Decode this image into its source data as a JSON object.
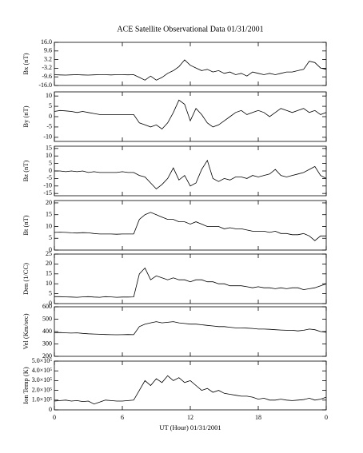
{
  "chart_data": [
    {
      "type": "line",
      "title": "ACE Satellite Observational Data   01/31/2001",
      "ylabel": "Bx (nT)",
      "color": "#000000",
      "x": [
        0,
        0.5,
        1,
        1.5,
        2,
        2.5,
        3,
        3.5,
        4,
        4.5,
        5,
        5.5,
        6,
        6.5,
        7,
        7.5,
        8,
        8.5,
        9,
        9.5,
        10,
        10.5,
        11,
        11.5,
        12,
        12.5,
        13,
        13.5,
        14,
        14.5,
        15,
        15.5,
        16,
        16.5,
        17,
        17.5,
        18,
        18.5,
        19,
        19.5,
        20,
        20.5,
        21,
        21.5,
        22,
        22.5,
        23,
        23.5,
        24
      ],
      "values": [
        -8,
        -8.2,
        -8.3,
        -8.1,
        -8,
        -8.2,
        -8.3,
        -8.1,
        -8,
        -8,
        -8.2,
        -8,
        -8,
        -8.1,
        -8,
        -10,
        -12,
        -9,
        -12,
        -10,
        -7,
        -5,
        -2,
        3,
        -1,
        -3,
        -5,
        -4,
        -6,
        -5,
        -7,
        -6,
        -8,
        -7,
        -9,
        -6,
        -7,
        -8,
        -7,
        -8,
        -7,
        -6,
        -6,
        -5,
        -4,
        2,
        1,
        -3,
        -4
      ],
      "xlim": [
        0,
        24
      ],
      "xticks": [
        0,
        6,
        12,
        18,
        {
          "value": 24,
          "label": "0"
        }
      ],
      "ylim": [
        -16,
        16
      ],
      "yticks": [
        {
          "value": 16,
          "label": "16.0"
        },
        9.6,
        3.2,
        -3.2,
        -9.6,
        {
          "value": -16,
          "label": "-16.0"
        }
      ]
    },
    {
      "type": "line",
      "ylabel": "By (nT)",
      "color": "#000000",
      "x": [
        0,
        0.5,
        1,
        1.5,
        2,
        2.5,
        3,
        3.5,
        4,
        4.5,
        5,
        5.5,
        6,
        6.5,
        7,
        7.5,
        8,
        8.5,
        9,
        9.5,
        10,
        10.5,
        11,
        11.5,
        12,
        12.5,
        13,
        13.5,
        14,
        14.5,
        15,
        15.5,
        16,
        16.5,
        17,
        17.5,
        18,
        18.5,
        19,
        19.5,
        20,
        20.5,
        21,
        21.5,
        22,
        22.5,
        23,
        23.5,
        24
      ],
      "values": [
        2.5,
        3,
        2.8,
        2.5,
        2,
        2.5,
        2,
        1.5,
        1,
        1,
        1,
        1,
        1,
        1,
        1,
        -3,
        -4,
        -5,
        -4,
        -6,
        -3,
        2,
        8,
        6,
        -2,
        4,
        1,
        -3,
        -5,
        -4,
        -2,
        0,
        2,
        3,
        1,
        2,
        3,
        2,
        0,
        2,
        4,
        3,
        2,
        3,
        4,
        2,
        3,
        1,
        2
      ],
      "xlim": [
        0,
        24
      ],
      "xticks": [
        0,
        6,
        12,
        18,
        {
          "value": 24,
          "label": "0"
        }
      ],
      "ylim": [
        -12,
        12
      ],
      "yticks": [
        -10,
        -5,
        0,
        5,
        10
      ]
    },
    {
      "type": "line",
      "ylabel": "Bz (nT)",
      "color": "#000000",
      "x": [
        0,
        0.5,
        1,
        1.5,
        2,
        2.5,
        3,
        3.5,
        4,
        4.5,
        5,
        5.5,
        6,
        6.5,
        7,
        7.5,
        8,
        8.5,
        9,
        9.5,
        10,
        10.5,
        11,
        11.5,
        12,
        12.5,
        13,
        13.5,
        14,
        14.5,
        15,
        15.5,
        16,
        16.5,
        17,
        17.5,
        18,
        18.5,
        19,
        19.5,
        20,
        20.5,
        21,
        21.5,
        22,
        22.5,
        23,
        23.5,
        24
      ],
      "values": [
        0,
        0,
        -0.5,
        0,
        -0.5,
        0,
        -1,
        -0.5,
        -1,
        -1,
        -1,
        -1,
        -0.5,
        -1,
        -1,
        -3,
        -4,
        -8,
        -12,
        -9,
        -5,
        2,
        -6,
        -3,
        -10,
        -8,
        1,
        7,
        -5,
        -7,
        -5,
        -6,
        -4,
        -4,
        -5,
        -3,
        -4,
        -3,
        -2,
        1,
        -3,
        -4,
        -3,
        -2,
        -1,
        1,
        3,
        -3,
        -5
      ],
      "xlim": [
        0,
        24
      ],
      "xticks": [
        0,
        6,
        12,
        18,
        {
          "value": 24,
          "label": "0"
        }
      ],
      "ylim": [
        -16.5,
        16.5
      ],
      "yticks": [
        -15,
        -10,
        -5,
        0,
        5,
        10,
        15
      ]
    },
    {
      "type": "line",
      "ylabel": "Bt (nT)",
      "color": "#000000",
      "x": [
        0,
        0.5,
        1,
        1.5,
        2,
        2.5,
        3,
        3.5,
        4,
        4.5,
        5,
        5.5,
        6,
        6.5,
        7,
        7.5,
        8,
        8.5,
        9,
        9.5,
        10,
        10.5,
        11,
        11.5,
        12,
        12.5,
        13,
        13.5,
        14,
        14.5,
        15,
        15.5,
        16,
        16.5,
        17,
        17.5,
        18,
        18.5,
        19,
        19.5,
        20,
        20.5,
        21,
        21.5,
        22,
        22.5,
        23,
        23.5,
        24
      ],
      "values": [
        7.5,
        7.6,
        7.5,
        7.3,
        7.2,
        7.4,
        7.3,
        7,
        6.8,
        6.8,
        6.8,
        6.7,
        6.8,
        6.8,
        6.8,
        13,
        15,
        16,
        15,
        14,
        13,
        13,
        12,
        12,
        11,
        12,
        11,
        10,
        10,
        10,
        9,
        9.5,
        9,
        9,
        8.5,
        8,
        8,
        8,
        7.5,
        8,
        7,
        7,
        6.5,
        6.5,
        7,
        6,
        4,
        6,
        6
      ],
      "xlim": [
        0,
        24
      ],
      "xticks": [
        0,
        6,
        12,
        18,
        {
          "value": 24,
          "label": "0"
        }
      ],
      "ylim": [
        0,
        21
      ],
      "yticks": [
        0,
        5,
        10,
        15,
        20
      ]
    },
    {
      "type": "line",
      "ylabel": "Den (1/CC)",
      "color": "#000000",
      "x": [
        0,
        0.5,
        1,
        1.5,
        2,
        2.5,
        3,
        3.5,
        4,
        4.5,
        5,
        5.5,
        6,
        6.5,
        7,
        7.5,
        8,
        8.5,
        9,
        9.5,
        10,
        10.5,
        11,
        11.5,
        12,
        12.5,
        13,
        13.5,
        14,
        14.5,
        15,
        15.5,
        16,
        16.5,
        17,
        17.5,
        18,
        18.5,
        19,
        19.5,
        20,
        20.5,
        21,
        21.5,
        22,
        22.5,
        23,
        23.5,
        24
      ],
      "values": [
        3.5,
        3.5,
        3.4,
        3.3,
        3.2,
        3.4,
        3.5,
        3.3,
        3.2,
        3.5,
        3.4,
        3.2,
        3.3,
        3.3,
        3.4,
        15,
        18,
        12,
        14,
        13,
        12,
        13,
        12,
        12,
        11,
        12,
        12,
        11,
        11,
        10,
        10,
        9,
        9,
        9,
        8.5,
        8,
        8.5,
        8,
        8,
        7.5,
        8,
        7.5,
        8,
        8,
        7,
        7.5,
        8,
        9,
        10
      ],
      "xlim": [
        0,
        24
      ],
      "xticks": [
        0,
        6,
        12,
        18,
        {
          "value": 24,
          "label": "0"
        }
      ],
      "ylim": [
        0,
        25
      ],
      "yticks": [
        0,
        5,
        10,
        15,
        20,
        25
      ]
    },
    {
      "type": "line",
      "ylabel": "Vel (Km/sec)",
      "color": "#000000",
      "x": [
        0,
        0.5,
        1,
        1.5,
        2,
        2.5,
        3,
        3.5,
        4,
        4.5,
        5,
        5.5,
        6,
        6.5,
        7,
        7.5,
        8,
        8.5,
        9,
        9.5,
        10,
        10.5,
        11,
        11.5,
        12,
        12.5,
        13,
        13.5,
        14,
        14.5,
        15,
        15.5,
        16,
        16.5,
        17,
        17.5,
        18,
        18.5,
        19,
        19.5,
        20,
        20.5,
        21,
        21.5,
        22,
        22.5,
        23,
        23.5,
        24
      ],
      "values": [
        390,
        392,
        390,
        388,
        390,
        385,
        382,
        380,
        378,
        376,
        375,
        374,
        375,
        376,
        375,
        440,
        460,
        470,
        480,
        470,
        475,
        480,
        470,
        465,
        460,
        460,
        455,
        450,
        445,
        440,
        440,
        435,
        430,
        430,
        428,
        425,
        420,
        420,
        418,
        415,
        412,
        410,
        410,
        405,
        410,
        420,
        415,
        400,
        395
      ],
      "xlim": [
        0,
        24
      ],
      "xticks": [
        0,
        6,
        12,
        18,
        {
          "value": 24,
          "label": "0"
        }
      ],
      "ylim": [
        200,
        600
      ],
      "yticks": [
        200,
        300,
        400,
        500,
        600
      ]
    },
    {
      "type": "line",
      "ylabel": "Ion Temp (K)",
      "xlabel": "UT (Hour)   01/31/2001",
      "color": "#000000",
      "x": [
        0,
        0.5,
        1,
        1.5,
        2,
        2.5,
        3,
        3.5,
        4,
        4.5,
        5,
        5.5,
        6,
        6.5,
        7,
        7.5,
        8,
        8.5,
        9,
        9.5,
        10,
        10.5,
        11,
        11.5,
        12,
        12.5,
        13,
        13.5,
        14,
        14.5,
        15,
        15.5,
        16,
        16.5,
        17,
        17.5,
        18,
        18.5,
        19,
        19.5,
        20,
        20.5,
        21,
        21.5,
        22,
        22.5,
        23,
        23.5,
        24
      ],
      "values": [
        90000,
        95000,
        100000,
        90000,
        95000,
        85000,
        90000,
        60000,
        80000,
        100000,
        95000,
        90000,
        90000,
        95000,
        100000,
        200000,
        300000,
        250000,
        320000,
        280000,
        350000,
        300000,
        330000,
        280000,
        300000,
        250000,
        200000,
        220000,
        180000,
        200000,
        170000,
        160000,
        150000,
        140000,
        140000,
        130000,
        110000,
        120000,
        100000,
        100000,
        110000,
        100000,
        95000,
        100000,
        105000,
        120000,
        100000,
        110000,
        130000
      ],
      "xlim": [
        0,
        24
      ],
      "xticks": [
        0,
        6,
        12,
        18,
        {
          "value": 24,
          "label": "0"
        }
      ],
      "ylim": [
        0,
        500000
      ],
      "yticks": [
        0,
        {
          "value": 100000,
          "label": "1.0×10⁵"
        },
        {
          "value": 200000,
          "label": "2.0×10⁵"
        },
        {
          "value": 300000,
          "label": "3.0×10⁵"
        },
        {
          "value": 400000,
          "label": "4.0×10⁵"
        },
        {
          "value": 500000,
          "label": "5.0×10⁵"
        }
      ]
    }
  ]
}
